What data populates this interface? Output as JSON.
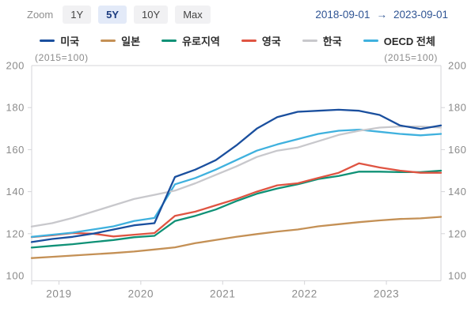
{
  "header": {
    "zoom_label": "Zoom",
    "zoom_buttons": [
      {
        "label": "1Y",
        "selected": false
      },
      {
        "label": "5Y",
        "selected": true
      },
      {
        "label": "10Y",
        "selected": false
      },
      {
        "label": "Max",
        "selected": false
      }
    ],
    "date_from": "2018-09-01",
    "date_arrow": "→",
    "date_to": "2023-09-01"
  },
  "styles": {
    "selected_button_bg": "#e3eaf8",
    "selected_button_text": "#1c3c80",
    "date_text_color": "#2f5494",
    "axis_text_color": "#8b8b8b",
    "axis_line_color": "#d4d4d8"
  },
  "chart_data": {
    "type": "line",
    "title": "",
    "unit_label_left": "(2015=100)",
    "unit_label_right": "(2015=100)",
    "x_range": [
      "2018-09",
      "2023-09"
    ],
    "ylim": [
      100,
      200
    ],
    "y_ticks": [
      200,
      180,
      160,
      140,
      120,
      100
    ],
    "x_tick_labels": [
      "2019",
      "2020",
      "2021",
      "2022",
      "2023"
    ],
    "x_tick_months": [
      4,
      16,
      28,
      40,
      52
    ],
    "grid": "axes-only",
    "legend_position": "top",
    "categories": [
      "2018-09",
      "2018-12",
      "2019-03",
      "2019-06",
      "2019-09",
      "2019-12",
      "2020-03",
      "2020-06",
      "2020-09",
      "2020-12",
      "2021-03",
      "2021-06",
      "2021-09",
      "2021-12",
      "2022-03",
      "2022-06",
      "2022-09",
      "2022-12",
      "2023-03",
      "2023-06",
      "2023-09"
    ],
    "series": [
      {
        "name": "일본",
        "color": "#c49055",
        "values": [
          108.4,
          109,
          109.6,
          110.2,
          110.8,
          111.5,
          112.5,
          113.5,
          115.5,
          117,
          118.5,
          119.8,
          121,
          122,
          123.5,
          124.5,
          125.5,
          126.3,
          127,
          127.3,
          128
        ]
      },
      {
        "name": "유로지역",
        "color": "#0f9176",
        "values": [
          113.4,
          114.2,
          115,
          116,
          117,
          118.3,
          119,
          126,
          128.5,
          131.5,
          135.5,
          139,
          141.5,
          143.5,
          146,
          147.5,
          149.5,
          149.5,
          149.3,
          149.3,
          150
        ]
      },
      {
        "name": "영국",
        "color": "#df5442",
        "values": [
          118.4,
          119.2,
          120.3,
          120,
          118.7,
          119.5,
          120.3,
          128.5,
          130.5,
          133.5,
          136.5,
          140,
          143,
          144,
          146.5,
          149,
          153.5,
          151.5,
          150,
          149,
          149
        ]
      },
      {
        "name": "OECD 전체",
        "color": "#3fb1de",
        "values": [
          118.5,
          119.5,
          120.5,
          122,
          123.5,
          126,
          127.5,
          143.5,
          146.5,
          150.5,
          155,
          159.5,
          162.5,
          165,
          167.5,
          169,
          169.5,
          168.5,
          167.5,
          166.8,
          167.5
        ]
      },
      {
        "name": "한국",
        "color": "#c8c8cc",
        "values": [
          123.4,
          125,
          127.5,
          130.5,
          133.5,
          136.5,
          138.5,
          140.5,
          144,
          148,
          152,
          156.5,
          159.5,
          161,
          164,
          167,
          169,
          170.5,
          171,
          171,
          170.5
        ]
      },
      {
        "name": "미국",
        "color": "#1a4f9e",
        "values": [
          116,
          117.5,
          118.5,
          120,
          122,
          124,
          125,
          147,
          150.5,
          155,
          162,
          170,
          175.5,
          178,
          178.5,
          179,
          178.5,
          176.5,
          171.5,
          169.8,
          171.5
        ]
      }
    ],
    "legend_order": [
      "미국",
      "일본",
      "유로지역",
      "영국",
      "한국",
      "OECD 전체"
    ]
  }
}
